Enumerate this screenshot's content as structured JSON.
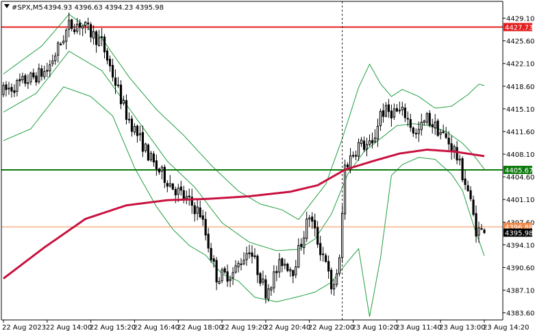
{
  "chart_data": {
    "type": "candlestick",
    "symbol_header": "#SPX,M5",
    "ohlc_header": "4394.93 4396.63 4394.23 4395.98",
    "y_ticks": [
      4429.1,
      4425.6,
      4422.1,
      4418.6,
      4415.1,
      4411.6,
      4408.1,
      4404.6,
      4401.1,
      4397.6,
      4394.1,
      4390.6,
      4387.1,
      4383.6
    ],
    "ylim": [
      4382.5,
      4431.7
    ],
    "x_labels": [
      "22 Aug 2023",
      "22 Aug 14:00",
      "22 Aug 15:20",
      "22 Aug 16:40",
      "22 Aug 18:00",
      "22 Aug 19:20",
      "22 Aug 20:40",
      "22 Aug 22:00",
      "23 Aug 10:20",
      "23 Aug 11:40",
      "23 Aug 13:00",
      "23 Aug 14:20"
    ],
    "x_label_index": [
      0,
      16,
      32,
      48,
      64,
      80,
      96,
      112,
      128,
      144,
      160,
      176
    ],
    "session_break_index": 124,
    "candle_count": 177,
    "horizontal_levels": [
      {
        "value": 4427.73,
        "label": "4427.73",
        "color": "#e31d1d"
      },
      {
        "value": 4405.67,
        "label": "4405.67",
        "color": "#0a7a0a"
      },
      {
        "value": 4396.88,
        "label": "4396.88",
        "color": "#f08b4a"
      }
    ],
    "current_price": {
      "value": 4395.98,
      "label": "4395.98"
    },
    "close_path": [
      [
        0,
        4417.8
      ],
      [
        16,
        4421.0
      ],
      [
        24,
        4427.9
      ],
      [
        28,
        4428.3
      ],
      [
        36,
        4425.3
      ],
      [
        45,
        4414.2
      ],
      [
        55,
        4406.5
      ],
      [
        62,
        4403.1
      ],
      [
        72,
        4399.0
      ],
      [
        78,
        4389.2
      ],
      [
        84,
        4389.7
      ],
      [
        90,
        4393.6
      ],
      [
        96,
        4386.9
      ],
      [
        102,
        4391.6
      ],
      [
        106,
        4390.3
      ],
      [
        112,
        4398.7
      ],
      [
        116,
        4393.3
      ],
      [
        118,
        4392.1
      ],
      [
        120,
        4386.6
      ],
      [
        123,
        4391.5
      ],
      [
        125,
        4406.2
      ],
      [
        130,
        4409.6
      ],
      [
        135,
        4409.3
      ],
      [
        138,
        4414.6
      ],
      [
        143,
        4414.7
      ],
      [
        147,
        4414.3
      ],
      [
        151,
        4411.0
      ],
      [
        155,
        4413.6
      ],
      [
        160,
        4411.5
      ],
      [
        165,
        4408.8
      ],
      [
        170,
        4402.5
      ],
      [
        173,
        4396.5
      ],
      [
        176,
        4395.98
      ]
    ],
    "ma_path": [
      [
        0,
        4388.9
      ],
      [
        15,
        4393.7
      ],
      [
        30,
        4398.1
      ],
      [
        45,
        4400.2
      ],
      [
        60,
        4401.0
      ],
      [
        75,
        4401.2
      ],
      [
        90,
        4401.6
      ],
      [
        105,
        4402.3
      ],
      [
        115,
        4403.3
      ],
      [
        125,
        4405.7
      ],
      [
        135,
        4407.0
      ],
      [
        145,
        4408.2
      ],
      [
        155,
        4408.8
      ],
      [
        165,
        4408.5
      ],
      [
        176,
        4407.8
      ]
    ],
    "band_upper_path": [
      [
        0,
        4420.5
      ],
      [
        14,
        4424.8
      ],
      [
        24,
        4429.7
      ],
      [
        36,
        4426.0
      ],
      [
        46,
        4420.0
      ],
      [
        56,
        4415.0
      ],
      [
        66,
        4411.0
      ],
      [
        76,
        4406.4
      ],
      [
        86,
        4402.4
      ],
      [
        94,
        4400.4
      ],
      [
        102,
        4399.5
      ],
      [
        108,
        4398.0
      ],
      [
        112,
        4400.2
      ],
      [
        118,
        4403.5
      ],
      [
        124,
        4410.5
      ],
      [
        130,
        4418.4
      ],
      [
        134,
        4422.0
      ],
      [
        138,
        4419.0
      ],
      [
        142,
        4417.0
      ],
      [
        146,
        4418.1
      ],
      [
        152,
        4417.0
      ],
      [
        158,
        4415.2
      ],
      [
        164,
        4415.5
      ],
      [
        170,
        4417.3
      ],
      [
        174,
        4418.9
      ],
      [
        176,
        4418.7
      ]
    ],
    "band_mid_path": [
      [
        0,
        4414.6
      ],
      [
        12,
        4417.5
      ],
      [
        24,
        4424.0
      ],
      [
        36,
        4421.0
      ],
      [
        48,
        4414.0
      ],
      [
        60,
        4407.0
      ],
      [
        70,
        4403.0
      ],
      [
        80,
        4397.5
      ],
      [
        90,
        4394.5
      ],
      [
        100,
        4393.2
      ],
      [
        108,
        4393.4
      ],
      [
        114,
        4395.0
      ],
      [
        120,
        4398.8
      ],
      [
        126,
        4405.0
      ],
      [
        132,
        4408.5
      ],
      [
        138,
        4410.5
      ],
      [
        144,
        4412.5
      ],
      [
        150,
        4412.8
      ],
      [
        156,
        4412.5
      ],
      [
        162,
        4411.6
      ],
      [
        168,
        4409.8
      ],
      [
        172,
        4408.0
      ],
      [
        176,
        4405.8
      ]
    ],
    "band_lower_path": [
      [
        0,
        4410.2
      ],
      [
        10,
        4412.0
      ],
      [
        22,
        4418.5
      ],
      [
        32,
        4417.0
      ],
      [
        40,
        4414.0
      ],
      [
        48,
        4406.0
      ],
      [
        56,
        4400.0
      ],
      [
        62,
        4396.5
      ],
      [
        68,
        4394.0
      ],
      [
        74,
        4392.5
      ],
      [
        80,
        4389.6
      ],
      [
        86,
        4388.5
      ],
      [
        92,
        4386.0
      ],
      [
        100,
        4385.3
      ],
      [
        108,
        4386.1
      ],
      [
        114,
        4386.8
      ],
      [
        120,
        4388.3
      ],
      [
        126,
        4391.5
      ],
      [
        130,
        4393.5
      ],
      [
        134,
        4383.0
      ],
      [
        138,
        4392.0
      ],
      [
        142,
        4404.8
      ],
      [
        146,
        4406.5
      ],
      [
        152,
        4407.6
      ],
      [
        158,
        4407.3
      ],
      [
        164,
        4405.0
      ],
      [
        168,
        4402.5
      ],
      [
        172,
        4397.2
      ],
      [
        176,
        4392.4
      ]
    ],
    "colors": {
      "candles": "#000000",
      "ma": "#c8103e",
      "band": "#1f9e3f"
    }
  }
}
